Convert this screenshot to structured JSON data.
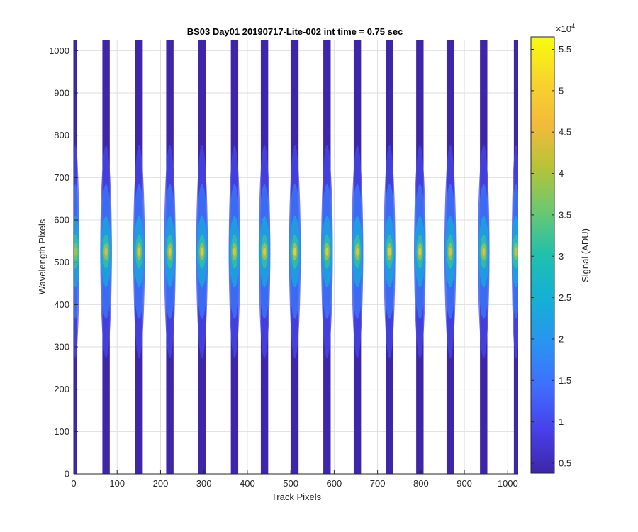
{
  "chart_data": {
    "type": "heatmap",
    "title": "BS03 Day01 20190717-Lite-002 int time = 0.75 sec",
    "xlabel": "Track Pixels",
    "ylabel": "Wavelength Pixels",
    "xlim": [
      0,
      1024
    ],
    "ylim": [
      0,
      1024
    ],
    "xticks": [
      0,
      100,
      200,
      300,
      400,
      500,
      600,
      700,
      800,
      900,
      1000
    ],
    "yticks": [
      0,
      100,
      200,
      300,
      400,
      500,
      600,
      700,
      800,
      900,
      1000
    ],
    "grid": true,
    "colormap": "parula",
    "colorbar": {
      "label": "Signal (ADU)",
      "exponent_label": "×10",
      "exponent": "4",
      "range": [
        0.38,
        5.65
      ],
      "ticks": [
        0.5,
        1,
        1.5,
        2,
        2.5,
        3,
        3.5,
        4,
        4.5,
        5,
        5.5
      ],
      "tick_labels": [
        "0.5",
        "1",
        "1.5",
        "2",
        "2.5",
        "3",
        "3.5",
        "4",
        "4.5",
        "5",
        "5.5"
      ]
    },
    "tracks": [
      {
        "x_start": 0,
        "x_end": 8,
        "peak": 4.0
      },
      {
        "x_start": 66,
        "x_end": 83,
        "peak": 4.6
      },
      {
        "x_start": 142,
        "x_end": 159,
        "peak": 4.8
      },
      {
        "x_start": 213,
        "x_end": 230,
        "peak": 4.9
      },
      {
        "x_start": 287,
        "x_end": 304,
        "peak": 5.0
      },
      {
        "x_start": 362,
        "x_end": 379,
        "peak": 4.8
      },
      {
        "x_start": 431,
        "x_end": 448,
        "peak": 4.9
      },
      {
        "x_start": 501,
        "x_end": 518,
        "peak": 5.1
      },
      {
        "x_start": 575,
        "x_end": 592,
        "peak": 4.9
      },
      {
        "x_start": 645,
        "x_end": 662,
        "peak": 4.8
      },
      {
        "x_start": 719,
        "x_end": 736,
        "peak": 5.0
      },
      {
        "x_start": 789,
        "x_end": 806,
        "peak": 4.9
      },
      {
        "x_start": 859,
        "x_end": 876,
        "peak": 4.7
      },
      {
        "x_start": 936,
        "x_end": 953,
        "peak": 4.7
      },
      {
        "x_start": 1014,
        "x_end": 1024,
        "peak": 4.5
      }
    ],
    "peak_row": 525,
    "background_value": 0.38
  }
}
